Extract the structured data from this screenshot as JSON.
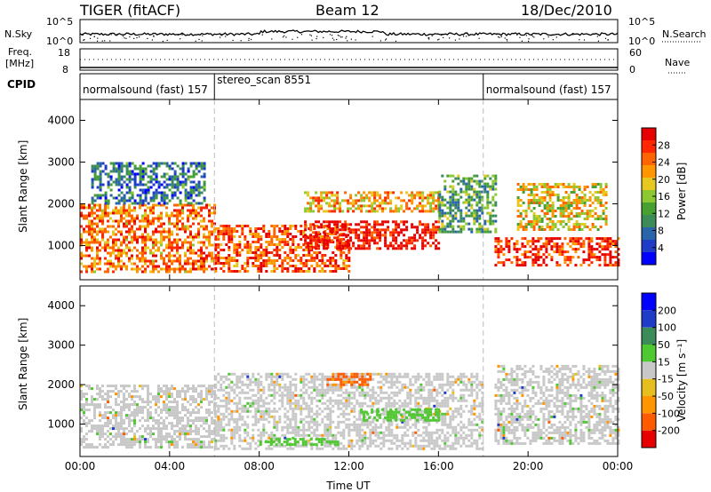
{
  "header": {
    "radar": "TIGER (fitACF)",
    "beam": "Beam 12",
    "date": "18/Dec/2010"
  },
  "nsky_panel": {
    "left_label": "N.Sky",
    "right_label": "N.Search",
    "left_ticks": [
      "10^5",
      "10^0"
    ],
    "right_ticks": [
      "10^5",
      "10^0"
    ]
  },
  "freq_panel": {
    "left_label_line1": "Freq.",
    "left_label_line2": "[MHz]",
    "right_label": "Nave",
    "left_ticks": [
      "18",
      "8"
    ],
    "right_ticks": [
      "60",
      "0"
    ]
  },
  "cpid": {
    "label": "CPID",
    "segments": [
      {
        "start_h": 0,
        "end_h": 6,
        "name": "normalsound (fast) 157"
      },
      {
        "start_h": 6,
        "end_h": 18,
        "name": "stereo_scan 8551"
      },
      {
        "start_h": 18,
        "end_h": 24,
        "name": "normalsound (fast) 157"
      }
    ]
  },
  "chart_data": [
    {
      "type": "heatmap",
      "title": "",
      "xlabel": "",
      "ylabel": "Slant Range [km]",
      "xlim": [
        0,
        24
      ],
      "ylim": [
        180,
        4500
      ],
      "y_ticks": [
        "1000",
        "2000",
        "3000",
        "4000"
      ],
      "colorbar": {
        "label": "Power [dB]",
        "ticks": [
          "4",
          "8",
          "12",
          "16",
          "20",
          "24",
          "28"
        ],
        "colors": [
          "#0000ff",
          "#1e3cc8",
          "#2a64aa",
          "#3c8c5a",
          "#46a032",
          "#8cc832",
          "#e6c81e",
          "#ff9600",
          "#ff6400",
          "#ff2800",
          "#e60000"
        ]
      },
      "echo_regions": [
        {
          "t0": 0.0,
          "t1": 6.0,
          "r0": 400,
          "r1": 2000,
          "level": 22
        },
        {
          "t0": 0.5,
          "t1": 5.5,
          "r0": 2000,
          "r1": 3000,
          "level": 8
        },
        {
          "t0": 6.0,
          "t1": 12.0,
          "r0": 400,
          "r1": 1500,
          "level": 24
        },
        {
          "t0": 10.0,
          "t1": 16.0,
          "r0": 900,
          "r1": 1600,
          "level": 28
        },
        {
          "t0": 10.0,
          "t1": 16.0,
          "r0": 1800,
          "r1": 2300,
          "level": 20
        },
        {
          "t0": 16.0,
          "t1": 18.5,
          "r0": 1300,
          "r1": 2700,
          "level": 12
        },
        {
          "t0": 18.5,
          "t1": 24.0,
          "r0": 500,
          "r1": 1200,
          "level": 26
        },
        {
          "t0": 19.5,
          "t1": 23.5,
          "r0": 1400,
          "r1": 2500,
          "level": 18
        }
      ]
    },
    {
      "type": "heatmap",
      "title": "",
      "xlabel": "Time UT",
      "ylabel": "Slant Range [km]",
      "xlim": [
        0,
        24
      ],
      "ylim": [
        180,
        4500
      ],
      "x_ticks": [
        "00:00",
        "04:00",
        "08:00",
        "12:00",
        "16:00",
        "20:00",
        "00:00"
      ],
      "y_ticks": [
        "1000",
        "2000",
        "3000",
        "4000"
      ],
      "colorbar": {
        "label": "Velocity [m s⁻¹]",
        "ticks": [
          "-200",
          "-100",
          "-50",
          "-15",
          "15",
          "50",
          "100",
          "200"
        ],
        "colors": [
          "#e60000",
          "#ff5a00",
          "#ff9600",
          "#e6be1e",
          "#c8c8c8",
          "#50c832",
          "#3c8c5a",
          "#1e3cc8",
          "#0000ff"
        ]
      },
      "echo_regions": [
        {
          "t0": 0.0,
          "t1": 6.0,
          "r0": 400,
          "r1": 2000,
          "level": 0
        },
        {
          "t0": 6.0,
          "t1": 18.0,
          "r0": 400,
          "r1": 2300,
          "level": 0
        },
        {
          "t0": 12.5,
          "t1": 16.0,
          "r0": 1100,
          "r1": 1400,
          "level": 60
        },
        {
          "t0": 8.0,
          "t1": 11.5,
          "r0": 450,
          "r1": 650,
          "level": 45
        },
        {
          "t0": 18.5,
          "t1": 24.0,
          "r0": 500,
          "r1": 2500,
          "level": 0
        },
        {
          "t0": 11.0,
          "t1": 13.0,
          "r0": 2000,
          "r1": 2300,
          "level": -80
        }
      ]
    }
  ]
}
